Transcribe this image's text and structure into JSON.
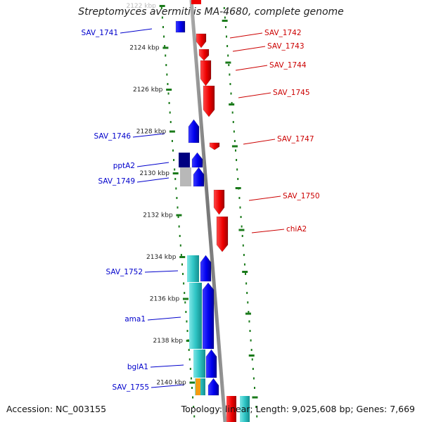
{
  "title": "Streptomyces avermitilis MA-4680, complete genome",
  "accession": "Accession: NC_003155",
  "summary": "Topology: linear; Length: 9,025,608 bp; Genes: 7,669",
  "colors": {
    "plus_strand_gene": "#0000ee",
    "minus_strand_gene": "#ee0000",
    "operon_cyan": "#2fc6c6",
    "operon_navy": "#000080",
    "operon_grey": "#b8b8b8",
    "operon_orange": "#f39c12",
    "backbone": "#888888",
    "ticks": "#1a7a1a",
    "plus_label": "#0000cc",
    "minus_label": "#cc0000"
  },
  "scale_labels": [
    {
      "kbp": 2122,
      "text": "2122 kbp",
      "faded": true
    },
    {
      "kbp": 2124,
      "text": "2124 kbp"
    },
    {
      "kbp": 2126,
      "text": "2126 kbp"
    },
    {
      "kbp": 2128,
      "text": "2128 kbp"
    },
    {
      "kbp": 2130,
      "text": "2130 kbp"
    },
    {
      "kbp": 2132,
      "text": "2132 kbp"
    },
    {
      "kbp": 2134,
      "text": "2134 kbp"
    },
    {
      "kbp": 2136,
      "text": "2136 kbp"
    },
    {
      "kbp": 2138,
      "text": "2138 kbp"
    },
    {
      "kbp": 2140,
      "text": "2140 kbp"
    }
  ],
  "left_genes": [
    {
      "label": "SAV_1741"
    },
    {
      "label": "SAV_1746"
    },
    {
      "label": "pptA2"
    },
    {
      "label": "SAV_1749"
    },
    {
      "label": "SAV_1752"
    },
    {
      "label": "ama1"
    },
    {
      "label": "bglA1"
    },
    {
      "label": "SAV_1755"
    }
  ],
  "right_genes": [
    {
      "label": "SAV_1742"
    },
    {
      "label": "SAV_1743"
    },
    {
      "label": "SAV_1744"
    },
    {
      "label": "SAV_1745"
    },
    {
      "label": "SAV_1747"
    },
    {
      "label": "SAV_1750"
    },
    {
      "label": "chiA2"
    }
  ]
}
